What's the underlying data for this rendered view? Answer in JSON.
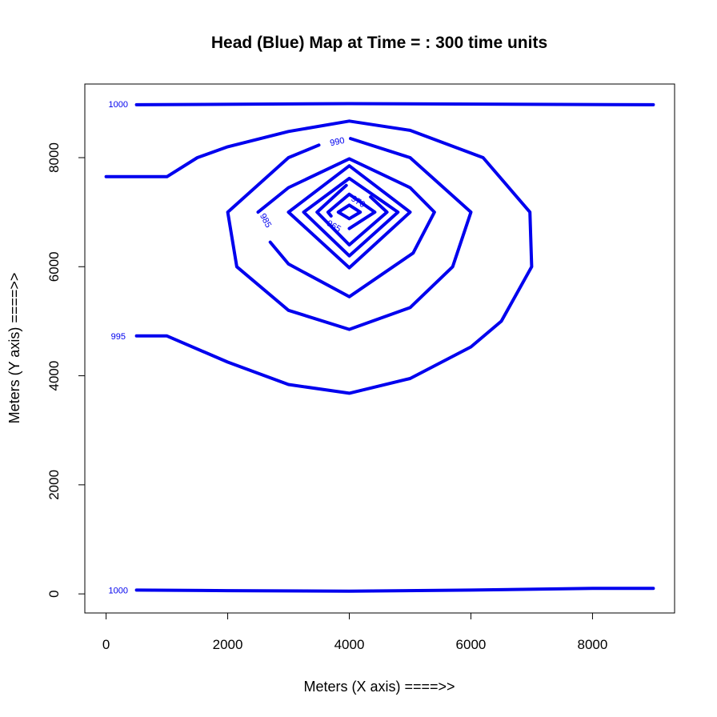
{
  "chart_data": {
    "type": "contour",
    "title": "Head (Blue) Map at Time = : 300  time units",
    "xlabel": "Meters (X axis) ====>>",
    "ylabel": "Meters (Y axis) ====>>",
    "xlim": [
      -350,
      9350
    ],
    "ylim": [
      -350,
      9350
    ],
    "xticks": [
      0,
      2000,
      4000,
      6000,
      8000
    ],
    "yticks": [
      0,
      2000,
      4000,
      6000,
      8000
    ],
    "xtick_labels": [
      "0",
      "2000",
      "4000",
      "6000",
      "8000"
    ],
    "ytick_labels": [
      "0",
      "2000",
      "4000",
      "6000",
      "8000"
    ],
    "grid": false,
    "line_color": "#0000ee",
    "contours": [
      {
        "level": 1000,
        "label": "1000",
        "label_pos": [
          200,
          8980
        ],
        "label_angle": 0,
        "points": [
          [
            500,
            8970
          ],
          [
            4000,
            8990
          ],
          [
            9000,
            8970
          ]
        ]
      },
      {
        "level": 1000,
        "label": "1000",
        "label_pos": [
          200,
          70
        ],
        "label_angle": 0,
        "points": [
          [
            500,
            70
          ],
          [
            2000,
            60
          ],
          [
            4000,
            50
          ],
          [
            6000,
            70
          ],
          [
            8000,
            100
          ],
          [
            9000,
            100
          ]
        ]
      },
      {
        "level": 995,
        "label": "995",
        "label_pos": [
          200,
          4730
        ],
        "label_angle": 0,
        "points": [
          [
            500,
            4730
          ],
          [
            1000,
            4730
          ],
          [
            2000,
            4250
          ],
          [
            3000,
            3840
          ],
          [
            4000,
            3680
          ],
          [
            5000,
            3950
          ],
          [
            6000,
            4530
          ],
          [
            6500,
            5000
          ],
          [
            7000,
            6000
          ],
          [
            6970,
            7000
          ],
          [
            6200,
            8000
          ],
          [
            5000,
            8500
          ],
          [
            4000,
            8670
          ],
          [
            3000,
            8480
          ],
          [
            2000,
            8200
          ],
          [
            1500,
            8000
          ],
          [
            1000,
            7650
          ],
          [
            0,
            7650
          ]
        ]
      },
      {
        "level": 990,
        "label": "990",
        "label_pos": [
          3800,
          8300
        ],
        "label_angle": -12,
        "points": [
          [
            4020,
            8350
          ],
          [
            5000,
            8000
          ],
          [
            6000,
            7000
          ],
          [
            5700,
            6000
          ],
          [
            5000,
            5250
          ],
          [
            4000,
            4850
          ],
          [
            3000,
            5200
          ],
          [
            2150,
            6000
          ],
          [
            2000,
            7000
          ],
          [
            3000,
            8000
          ],
          [
            3500,
            8230
          ]
        ]
      },
      {
        "level": 985,
        "label": "985",
        "label_pos": [
          2630,
          6850
        ],
        "label_angle": 62,
        "points": [
          [
            2500,
            7000
          ],
          [
            3000,
            7450
          ],
          [
            4000,
            7980
          ],
          [
            5000,
            7450
          ],
          [
            5400,
            7000
          ],
          [
            5050,
            6250
          ],
          [
            4000,
            5450
          ],
          [
            3000,
            6050
          ],
          [
            2700,
            6450
          ]
        ]
      },
      {
        "level": 980,
        "label": "",
        "label_pos": null,
        "label_angle": 0,
        "points": [
          [
            3000,
            7000
          ],
          [
            4000,
            7850
          ],
          [
            5000,
            7000
          ],
          [
            4000,
            5980
          ],
          [
            3000,
            7000
          ]
        ]
      },
      {
        "level": 975,
        "label": "",
        "label_pos": null,
        "label_angle": 0,
        "points": [
          [
            3250,
            7000
          ],
          [
            4000,
            7620
          ],
          [
            4800,
            7000
          ],
          [
            4000,
            6200
          ],
          [
            3250,
            7000
          ]
        ]
      },
      {
        "level": 970,
        "label": "970",
        "label_pos": [
          4150,
          7200
        ],
        "label_angle": 32,
        "points": [
          [
            3950,
            7490
          ],
          [
            3470,
            7000
          ],
          [
            4000,
            6400
          ],
          [
            4620,
            7000
          ],
          [
            4350,
            7280
          ]
        ]
      },
      {
        "level": 965,
        "label": "965",
        "label_pos": [
          3750,
          6750
        ],
        "label_angle": 30,
        "points": [
          [
            4000,
            6700
          ],
          [
            4420,
            7000
          ],
          [
            4000,
            7330
          ],
          [
            3650,
            7000
          ],
          [
            3700,
            6930
          ]
        ]
      },
      {
        "level": 960,
        "label": "",
        "label_pos": null,
        "label_angle": 0,
        "points": [
          [
            3820,
            7000
          ],
          [
            4000,
            7130
          ],
          [
            4180,
            7000
          ],
          [
            4000,
            6880
          ],
          [
            3820,
            7000
          ]
        ]
      }
    ]
  }
}
